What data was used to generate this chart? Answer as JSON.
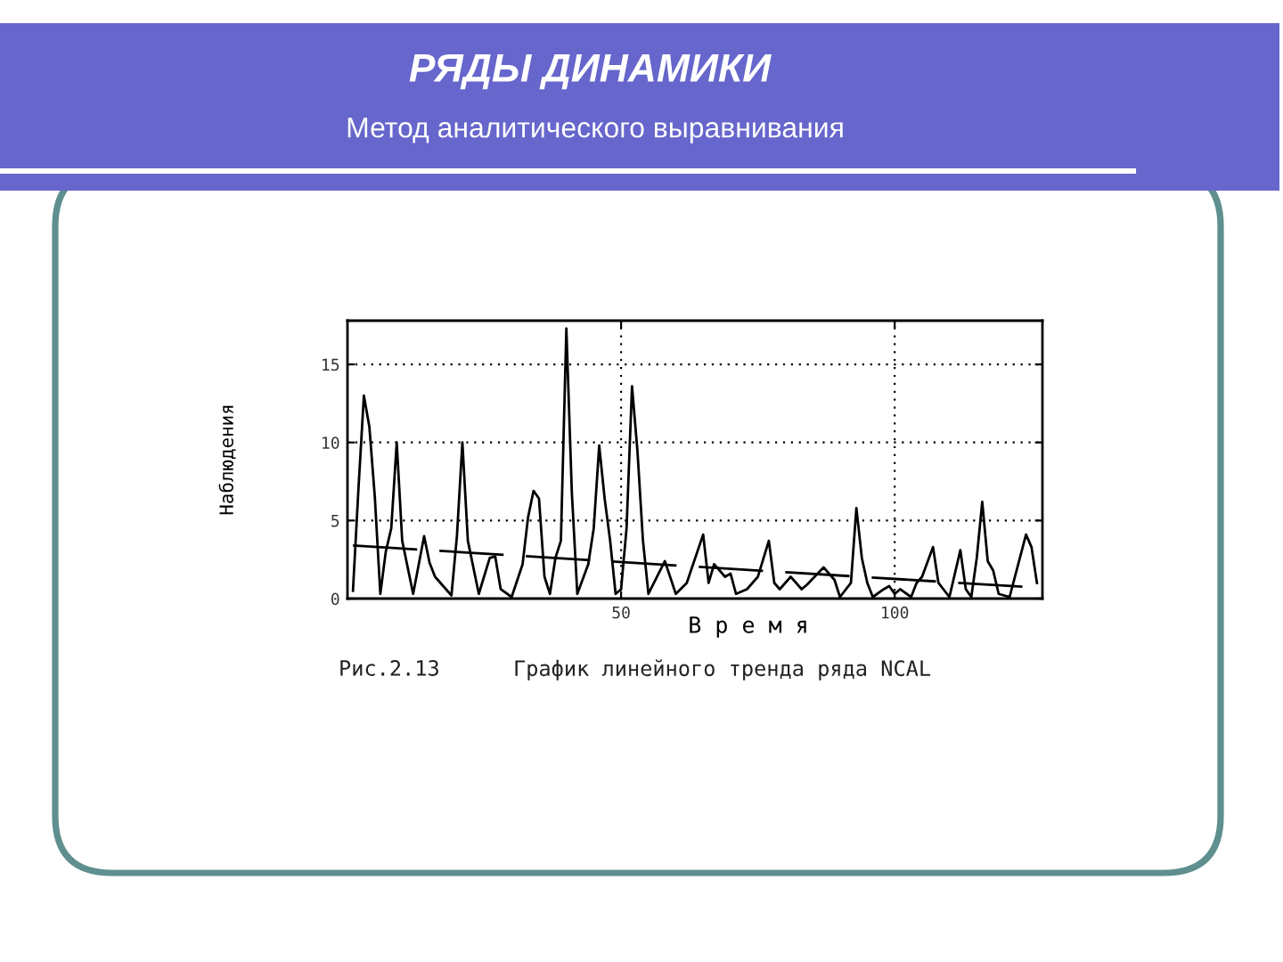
{
  "chart_data": {
    "type": "line",
    "title": "РЯДЫ ДИНАМИКИ",
    "subtitle": "Метод аналитического выравнивания",
    "xlabel": "В р е м я",
    "ylabel": "Наблюдения",
    "annotations": [
      "Рис.2.13",
      "График линейного тренда ряда NCAL"
    ],
    "series": [
      {
        "color": "#000000",
        "line_style": "solid",
        "x": [
          1,
          2,
          3,
          4,
          5,
          6,
          7,
          8,
          9,
          10,
          12,
          14,
          15,
          16,
          19,
          20,
          21,
          22,
          24,
          26,
          27,
          28,
          30,
          32,
          33,
          34,
          35,
          36,
          37,
          38,
          39,
          40,
          41,
          42,
          44,
          45,
          46,
          47,
          48,
          49,
          50,
          51,
          52,
          53,
          54,
          55,
          58,
          60,
          62,
          65,
          66,
          67,
          69,
          70,
          71,
          73,
          75,
          77,
          78,
          79,
          81,
          83,
          84,
          87,
          89,
          90,
          92,
          93,
          94,
          95,
          96,
          98,
          99,
          100,
          101,
          103,
          104,
          105,
          107,
          108,
          110,
          112,
          113,
          114,
          115,
          116,
          117,
          118,
          119,
          121,
          124,
          125,
          126
        ],
        "values": [
          0.5,
          7,
          13,
          11,
          6.5,
          0.3,
          3,
          4.5,
          10,
          3.7,
          0.3,
          4,
          2.3,
          1.4,
          0.2,
          4,
          10,
          3.7,
          0.3,
          2.6,
          2.7,
          0.6,
          0.1,
          2.2,
          5.2,
          6.9,
          6.4,
          1.4,
          0.3,
          2.6,
          3.7,
          17.3,
          6.8,
          0.3,
          2.2,
          4.5,
          9.8,
          6.4,
          3.7,
          0.3,
          0.6,
          4.5,
          13.6,
          9.4,
          3.7,
          0.3,
          2.4,
          0.3,
          1,
          4.1,
          1,
          2.2,
          1.4,
          1.6,
          0.3,
          0.6,
          1.4,
          3.7,
          1,
          0.6,
          1.4,
          0.6,
          0.9,
          2,
          1.2,
          0.1,
          1,
          5.8,
          2.6,
          1,
          0.1,
          0.6,
          0.8,
          0.3,
          0.6,
          0.1,
          1,
          1.4,
          3.3,
          1,
          0.1,
          3.1,
          0.6,
          0.1,
          2.6,
          6.2,
          2.4,
          1.8,
          0.3,
          0.1,
          4.1,
          3.3,
          1
        ]
      },
      {
        "color": "#000000",
        "line_style": "dashed",
        "x": [
          1,
          126
        ],
        "values": [
          3.4,
          0.7
        ]
      }
    ],
    "xlim": [
      0,
      127
    ],
    "ylim": [
      0,
      17.8
    ],
    "xticks": [
      50,
      100
    ],
    "yticks": [
      0,
      5,
      10,
      15
    ],
    "grid": true
  }
}
